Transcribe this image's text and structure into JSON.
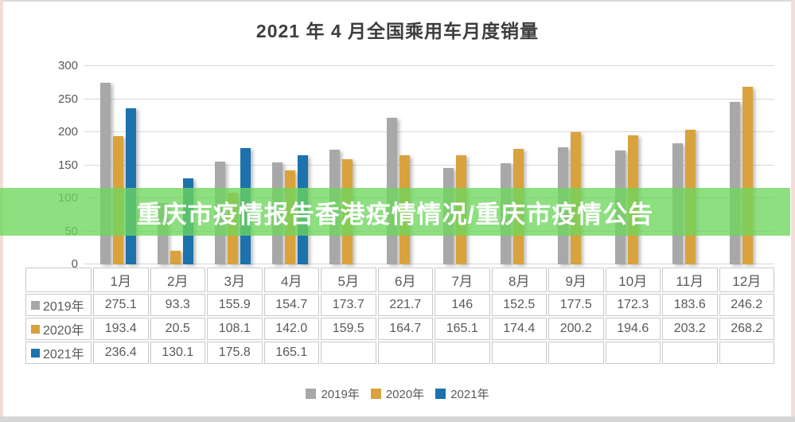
{
  "page": {
    "title": "2021 年 4 月全国乘用车月度销量"
  },
  "banner": {
    "text": "重庆市疫情报告香港疫情情况/重庆市疫情公告",
    "background_color": "#6dd65c",
    "text_color": "#ffffff"
  },
  "chart_data": {
    "type": "bar",
    "title": "2021 年 4 月全国乘用车月度销量",
    "categories": [
      "1月",
      "2月",
      "3月",
      "4月",
      "5月",
      "6月",
      "7月",
      "8月",
      "9月",
      "10月",
      "11月",
      "12月"
    ],
    "series": [
      {
        "name": "2019年",
        "color": "#a8a8a8",
        "values": [
          "275.1",
          "93.3",
          "155.9",
          "154.7",
          "173.7",
          "221.7",
          "146",
          "152.5",
          "177.5",
          "172.3",
          "183.6",
          "246.2"
        ]
      },
      {
        "name": "2020年",
        "color": "#d9a23c",
        "values": [
          "193.4",
          "20.5",
          "108.1",
          "142.0",
          "159.5",
          "164.7",
          "165.1",
          "174.4",
          "200.2",
          "194.6",
          "203.2",
          "268.2"
        ]
      },
      {
        "name": "2021年",
        "color": "#1b72ad",
        "values": [
          "236.4",
          "130.1",
          "175.8",
          "165.1",
          "",
          "",
          "",
          "",
          "",
          "",
          "",
          ""
        ]
      }
    ],
    "ylim": [
      0,
      300
    ],
    "yticks": [
      0,
      50,
      100,
      150,
      200,
      250,
      300
    ],
    "grid": true,
    "legend_position": "bottom",
    "data_table": true,
    "xlabel": "",
    "ylabel": ""
  }
}
